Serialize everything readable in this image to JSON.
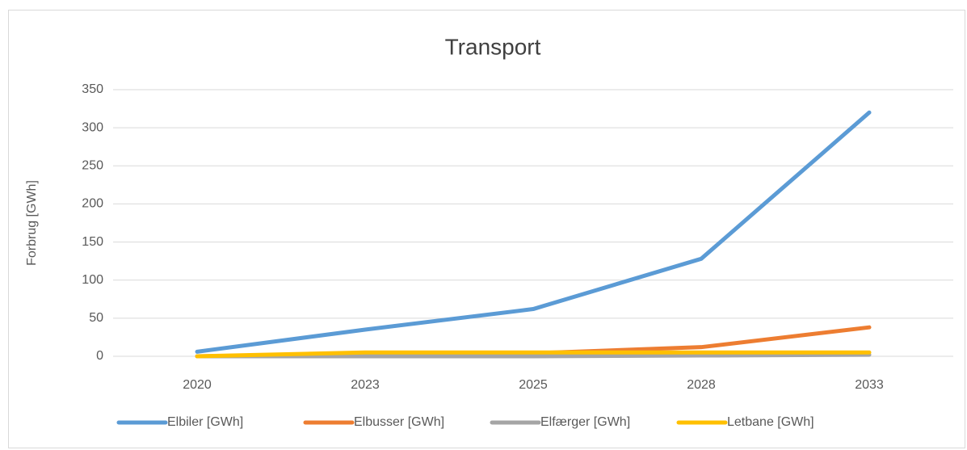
{
  "chart_data": {
    "type": "line",
    "title": "Transport",
    "ylabel": "Forbrug [GWh]",
    "categories": [
      "2020",
      "2023",
      "2025",
      "2028",
      "2033"
    ],
    "series": [
      {
        "name": "Elbiler [GWh]",
        "color": "#5b9bd5",
        "values": [
          6,
          35,
          62,
          128,
          320
        ]
      },
      {
        "name": "Elbusser [GWh]",
        "color": "#ed7d31",
        "values": [
          0,
          2,
          4,
          12,
          38
        ]
      },
      {
        "name": "Elfærger [GWh]",
        "color": "#a5a5a5",
        "values": [
          0,
          0,
          0,
          1,
          2
        ]
      },
      {
        "name": "Letbane [GWh]",
        "color": "#ffc000",
        "values": [
          0,
          5,
          5,
          5,
          5
        ]
      }
    ],
    "ylim": [
      0,
      350
    ],
    "yticks": [
      0,
      50,
      100,
      150,
      200,
      250,
      300,
      350
    ],
    "grid": true,
    "legend": "bottom"
  }
}
